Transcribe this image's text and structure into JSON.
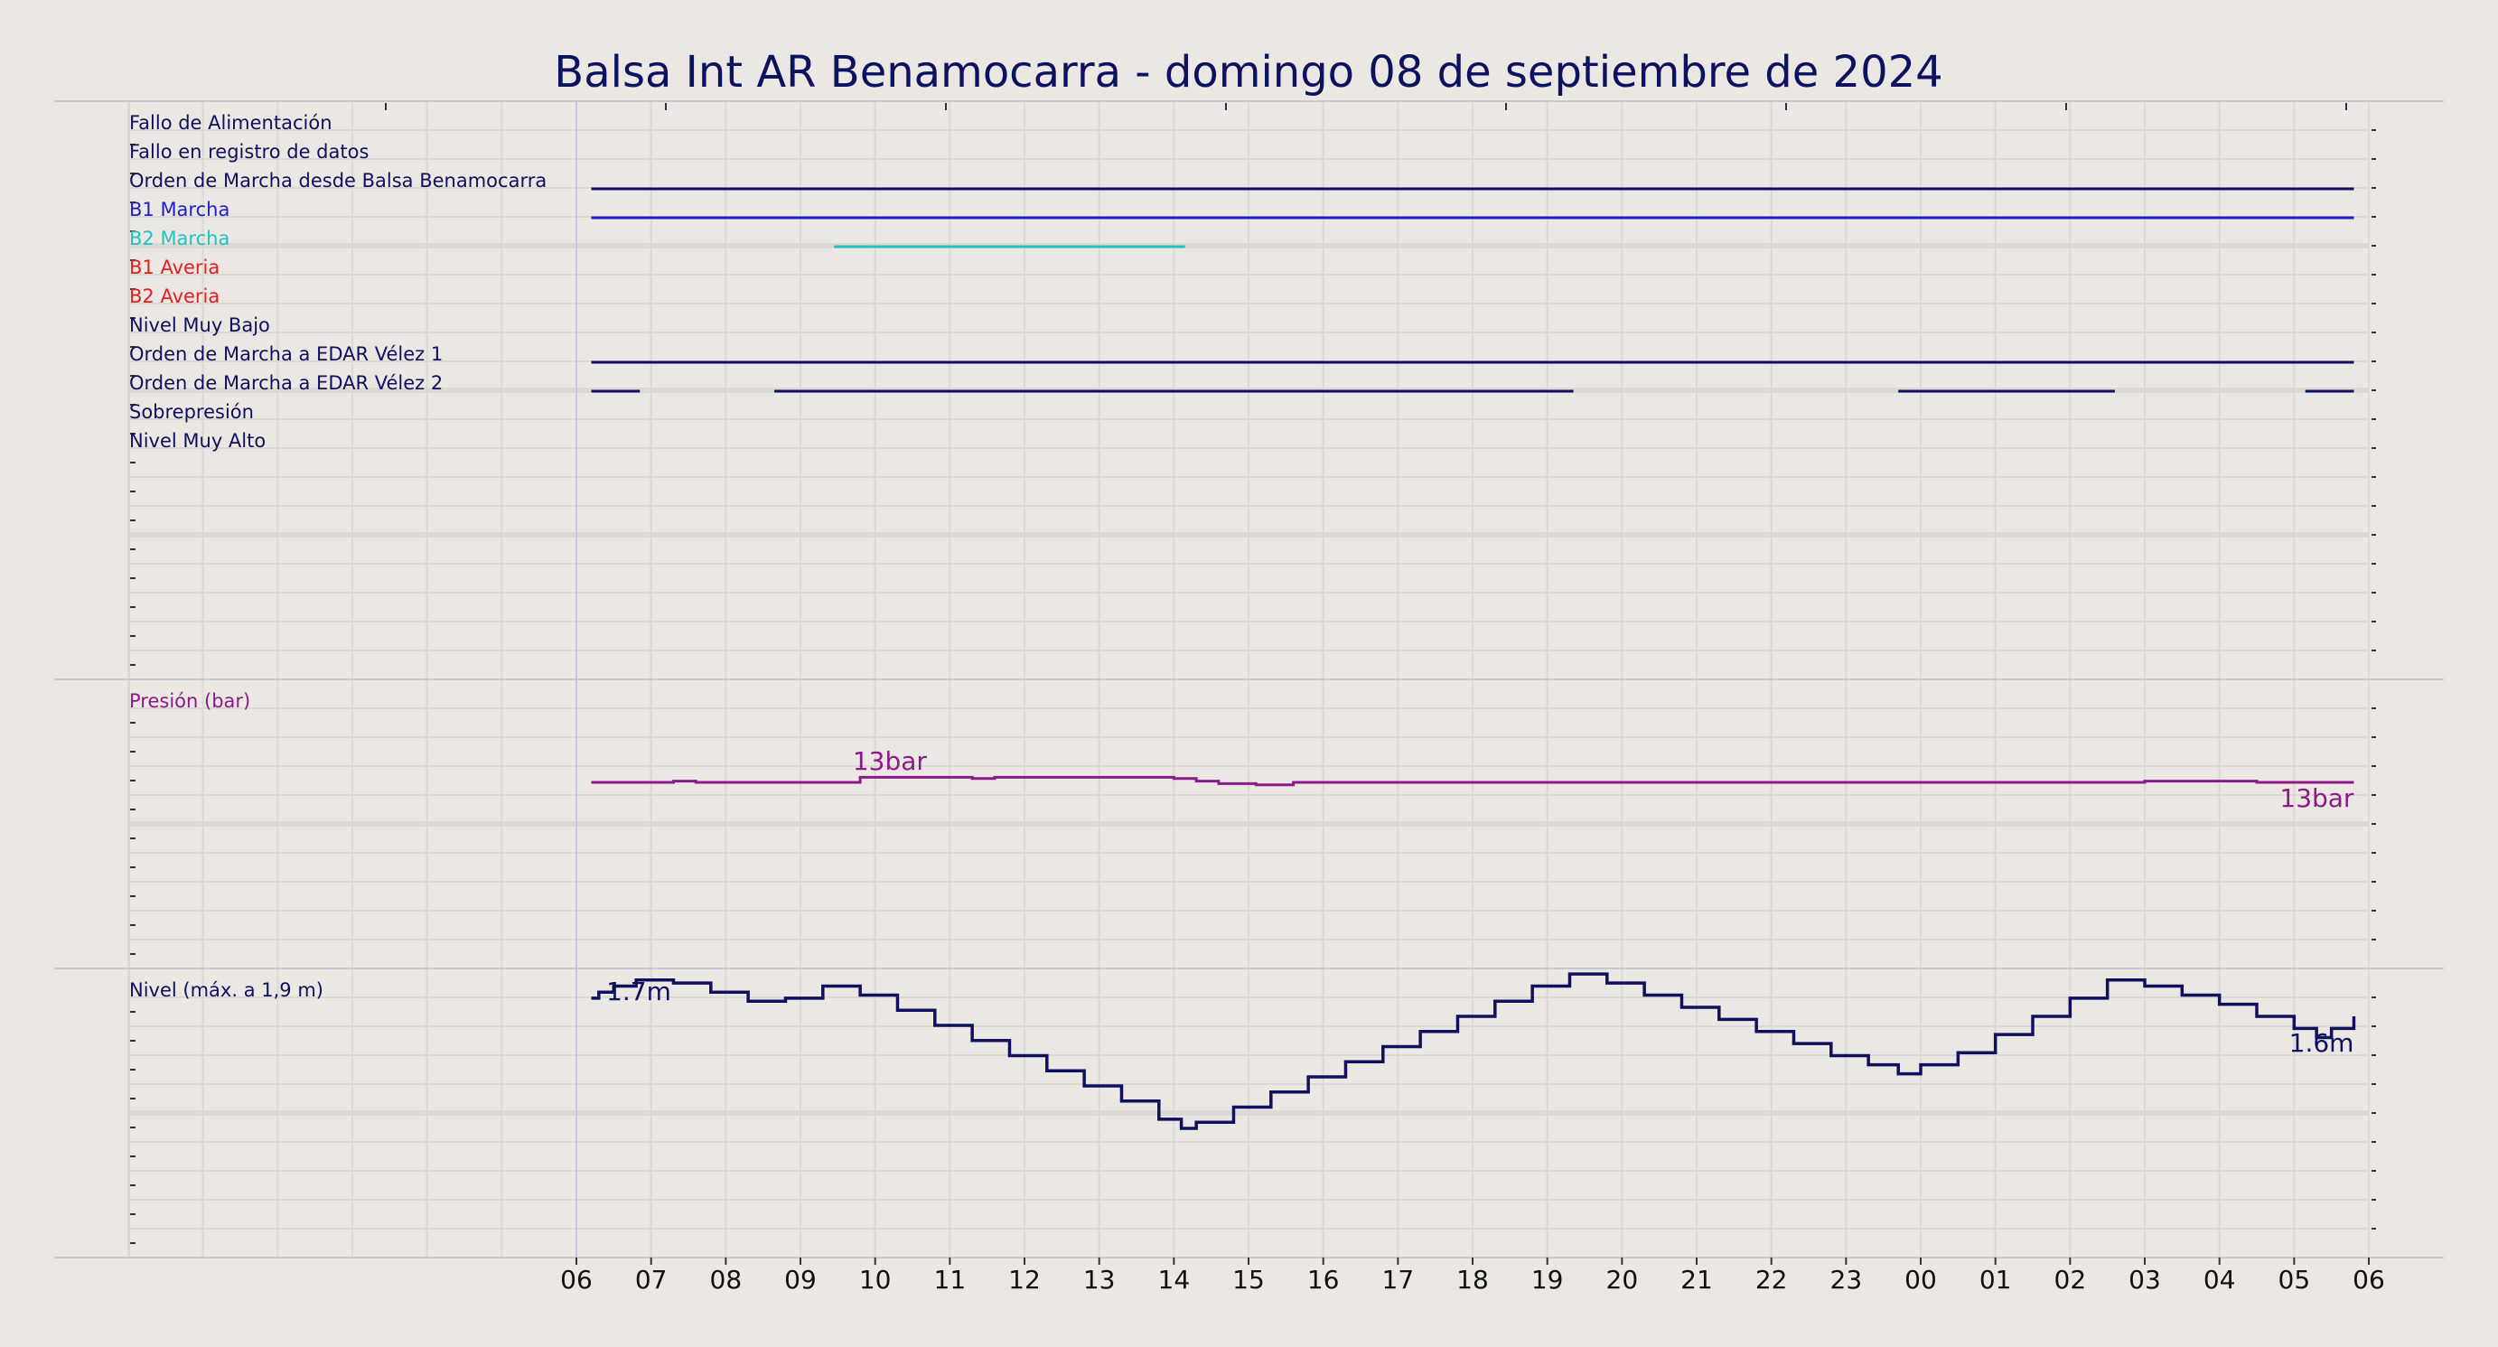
{
  "title": "Balsa Int AR Benamocarra   -   domingo 08 de septiembre de 2024",
  "colors": {
    "background": "#ebe7e2",
    "title": "#0c1260",
    "navy": "#101060",
    "blue": "#1f1fc8",
    "cyan": "#1ec4c4",
    "red": "#e61e1e",
    "purple": "#8b1a8b",
    "grid": "#ddd8d3",
    "divider": "#c8c8dc"
  },
  "chart_data": [
    {
      "type": "line",
      "name": "estados",
      "x_ticks": [
        "06",
        "07",
        "08",
        "09",
        "10",
        "11",
        "12",
        "13",
        "14",
        "15",
        "16",
        "17",
        "18",
        "19",
        "20",
        "21",
        "22",
        "23",
        "00",
        "01",
        "02",
        "03",
        "04",
        "05",
        "06"
      ],
      "x_range": [
        0,
        24
      ],
      "signals": [
        {
          "label": "Fallo de Alimentación",
          "color": "navy",
          "segments": []
        },
        {
          "label": "Fallo en registro de datos",
          "color": "navy",
          "segments": []
        },
        {
          "label": "Orden de Marcha desde Balsa Benamocarra",
          "color": "navy",
          "segments": [
            [
              0.2,
              23.8
            ]
          ]
        },
        {
          "label": "B1 Marcha",
          "color": "blue",
          "segments": [
            [
              0.2,
              23.8
            ]
          ]
        },
        {
          "label": "B2 Marcha",
          "color": "cyan",
          "segments": [
            [
              3.45,
              8.15
            ]
          ]
        },
        {
          "label": "B1 Averia",
          "color": "red",
          "segments": []
        },
        {
          "label": "B2 Averia",
          "color": "red",
          "segments": []
        },
        {
          "label": "Nivel Muy Bajo",
          "color": "navy",
          "segments": []
        },
        {
          "label": "Orden de Marcha a EDAR Vélez 1",
          "color": "navy",
          "segments": [
            [
              0.2,
              23.8
            ]
          ]
        },
        {
          "label": "Orden de Marcha a EDAR Vélez 2",
          "color": "navy",
          "segments": [
            [
              0.2,
              0.85
            ],
            [
              2.65,
              13.35
            ],
            [
              17.7,
              20.6
            ],
            [
              23.15,
              23.8
            ]
          ]
        },
        {
          "label": "Sobrepresión",
          "color": "navy",
          "segments": []
        },
        {
          "label": "Nivel Muy Alto",
          "color": "navy",
          "segments": []
        }
      ]
    },
    {
      "type": "line",
      "name": "presion",
      "label": "Presión (bar)",
      "color": "purple",
      "annotations": [
        {
          "text": "13bar",
          "x": 3.7,
          "anchor": "start"
        },
        {
          "text": "13bar",
          "x": 23.8,
          "anchor": "end"
        }
      ],
      "x": [
        0.2,
        1.3,
        1.6,
        3.5,
        3.8,
        4.8,
        5.3,
        5.6,
        8.0,
        8.3,
        8.6,
        9.1,
        9.6,
        20.7,
        21.0,
        22.5,
        23.6,
        23.8
      ],
      "values": [
        13.0,
        13.05,
        13.0,
        13.0,
        13.2,
        13.2,
        13.15,
        13.2,
        13.15,
        13.05,
        12.95,
        12.9,
        13.0,
        13.0,
        13.05,
        13.0,
        13.0,
        13.0
      ]
    },
    {
      "type": "line",
      "name": "nivel",
      "label": "Nivel (máx. a 1,9 m)",
      "color": "navy",
      "annotations": [
        {
          "text": "1.7m",
          "x": 0.4,
          "anchor": "start"
        },
        {
          "text": "1.6m",
          "x": 23.8,
          "anchor": "end"
        }
      ],
      "x": [
        0.2,
        0.3,
        0.5,
        0.8,
        1.3,
        1.8,
        2.3,
        2.8,
        3.3,
        3.8,
        4.3,
        4.8,
        5.3,
        5.8,
        6.3,
        6.8,
        7.3,
        7.8,
        8.1,
        8.3,
        8.8,
        9.3,
        9.8,
        10.3,
        10.8,
        11.3,
        11.8,
        12.3,
        12.8,
        13.3,
        13.8,
        14.3,
        14.8,
        15.3,
        15.8,
        16.3,
        16.8,
        17.3,
        17.7,
        18.0,
        18.5,
        19.0,
        19.5,
        20.0,
        20.5,
        21.0,
        21.5,
        22.0,
        22.5,
        23.0,
        23.3,
        23.5,
        23.8
      ],
      "values": [
        1.66,
        1.68,
        1.7,
        1.72,
        1.71,
        1.68,
        1.65,
        1.66,
        1.7,
        1.67,
        1.62,
        1.57,
        1.52,
        1.47,
        1.42,
        1.37,
        1.32,
        1.26,
        1.23,
        1.25,
        1.3,
        1.35,
        1.4,
        1.45,
        1.5,
        1.55,
        1.6,
        1.65,
        1.7,
        1.74,
        1.71,
        1.67,
        1.63,
        1.59,
        1.55,
        1.51,
        1.47,
        1.44,
        1.41,
        1.44,
        1.48,
        1.54,
        1.6,
        1.66,
        1.72,
        1.7,
        1.67,
        1.64,
        1.6,
        1.56,
        1.53,
        1.56,
        1.6
      ]
    }
  ]
}
